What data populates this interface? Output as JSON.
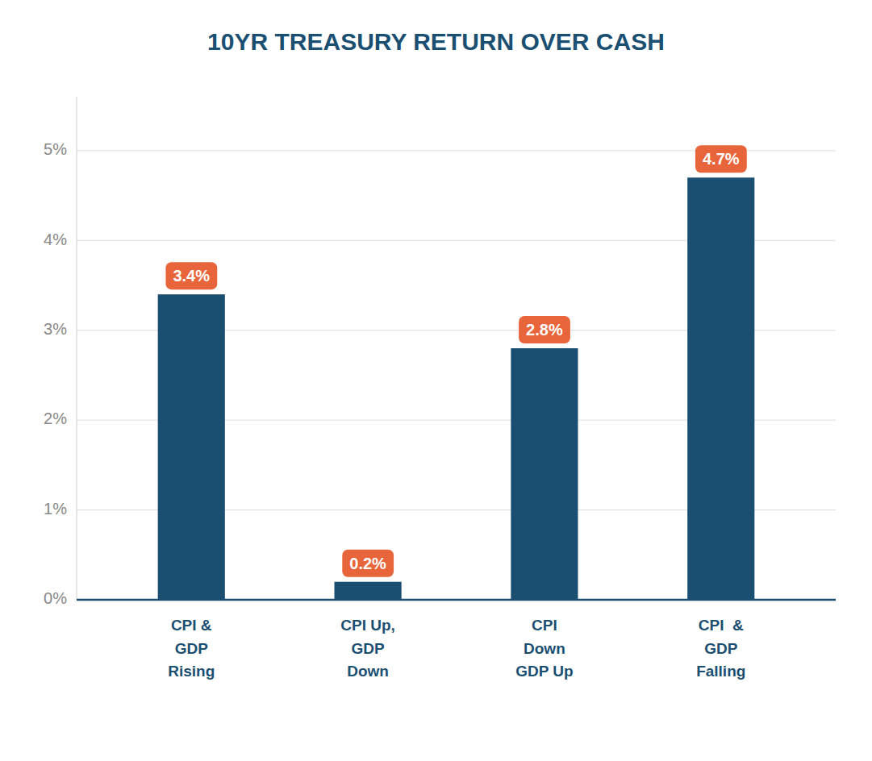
{
  "chart_data": {
    "type": "bar",
    "title": "10YR TREASURY RETURN OVER CASH",
    "categories": [
      "CPI &\nGDP\nRising",
      "CPI Up,\nGDP\nDown",
      "CPI\nDown\nGDP Up",
      "CPI  &\nGDP\nFalling"
    ],
    "values": [
      3.4,
      0.2,
      2.8,
      4.7
    ],
    "value_labels": [
      "3.4%",
      "0.2%",
      "2.8%",
      "4.7%"
    ],
    "data_labels": true,
    "color": "#1b4f72",
    "ylim": [
      0,
      5.6
    ],
    "yticks": [
      {
        "value": 0,
        "label": "0%"
      },
      {
        "value": 1,
        "label": "1%"
      },
      {
        "value": 2,
        "label": "2%"
      },
      {
        "value": 3,
        "label": "3%"
      },
      {
        "value": 4,
        "label": "4%"
      },
      {
        "value": 5,
        "label": "5%"
      }
    ],
    "grid": true
  }
}
